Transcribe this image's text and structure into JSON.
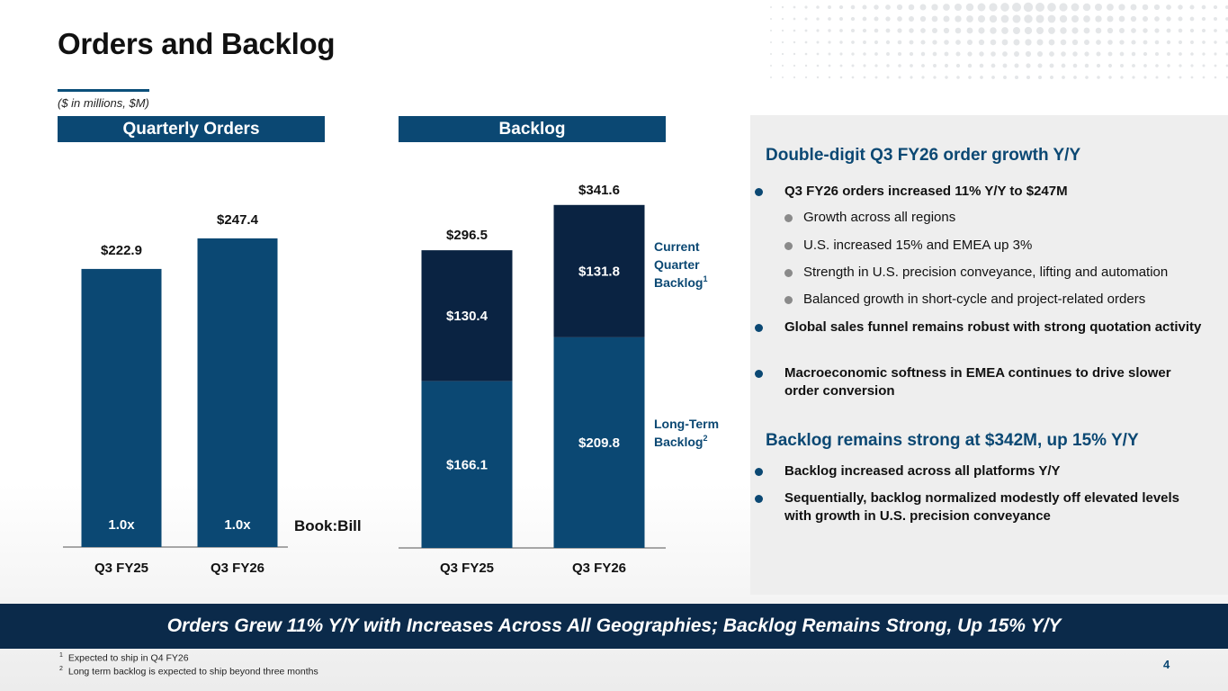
{
  "slide": {
    "title": "Orders and Backlog",
    "units": "($ in millions, $M)",
    "page_number": "4"
  },
  "orders_panel": {
    "header": "Quarterly Orders",
    "book_bill_label": "Book:Bill"
  },
  "backlog_panel": {
    "header": "Backlog",
    "legend_current": [
      "Current",
      "Quarter",
      "Backlog",
      "1"
    ],
    "legend_longterm": [
      "Long-Term",
      "Backlog",
      "2"
    ]
  },
  "chart_data": [
    {
      "type": "bar",
      "title": "Quarterly Orders",
      "categories": [
        "Q3 FY25",
        "Q3 FY26"
      ],
      "values": [
        222.9,
        247.4
      ],
      "value_labels": [
        "$222.9",
        "$247.4"
      ],
      "book_bill": [
        "1.0x",
        "1.0x"
      ],
      "ylim": [
        0,
        300
      ],
      "color": "#0b4873"
    },
    {
      "type": "bar",
      "stacked": true,
      "title": "Backlog",
      "categories": [
        "Q3 FY25",
        "Q3 FY26"
      ],
      "series": [
        {
          "name": "Long-Term Backlog",
          "values": [
            166.1,
            209.8
          ],
          "labels": [
            "$166.1",
            "$209.8"
          ],
          "color": "#0b4873"
        },
        {
          "name": "Current Quarter Backlog",
          "values": [
            130.4,
            131.8
          ],
          "labels": [
            "$130.4",
            "$131.8"
          ],
          "color": "#0a2342"
        }
      ],
      "totals": [
        296.5,
        341.6
      ],
      "total_labels": [
        "$296.5",
        "$341.6"
      ],
      "ylim": [
        0,
        345
      ]
    }
  ],
  "commentary": {
    "heading1": "Double-digit Q3 FY26 order growth Y/Y",
    "bullets1": [
      {
        "level": 1,
        "text": "Q3 FY26 orders increased 11% Y/Y to $247M"
      },
      {
        "level": 2,
        "text": "Growth across all regions"
      },
      {
        "level": 2,
        "text": "U.S. increased 15% and EMEA up 3%"
      },
      {
        "level": 2,
        "text": "Strength in U.S. precision conveyance, lifting and automation"
      },
      {
        "level": 2,
        "text": "Balanced growth in short-cycle and project-related orders"
      },
      {
        "level": 1,
        "text": "Global sales funnel remains robust with strong quotation activity"
      },
      {
        "level": 1,
        "text": "Macroeconomic softness in EMEA continues to drive slower order conversion"
      }
    ],
    "heading2": "Backlog remains strong at $342M, up 15% Y/Y",
    "bullets2": [
      {
        "level": 1,
        "text": "Backlog increased across all platforms Y/Y"
      },
      {
        "level": 1,
        "text": "Sequentially, backlog normalized modestly off elevated levels with growth in U.S. precision conveyance"
      }
    ]
  },
  "banner": "Orders Grew 11% Y/Y with Increases Across All Geographies; Backlog Remains Strong, Up 15% Y/Y",
  "footnotes": [
    {
      "mark": "1",
      "text": "Expected to ship in Q4 FY26"
    },
    {
      "mark": "2",
      "text": "Long term backlog is expected to ship beyond three months"
    }
  ],
  "colors": {
    "primary": "#0b4873",
    "dark_navy": "#0a2342",
    "banner": "#0b2a4a",
    "panel_bg": "#eeeeee"
  }
}
